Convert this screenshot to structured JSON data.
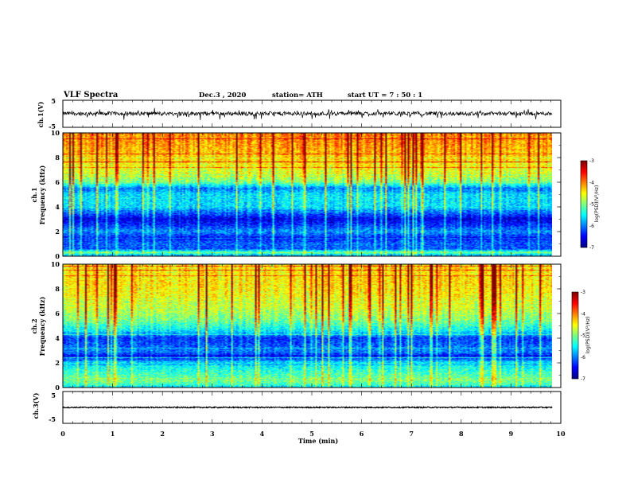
{
  "header": {
    "title": "VLF Spectra",
    "date": "Dec.3 , 2020",
    "station": "station= ATH",
    "start": "start UT = 7 : 50 : 1"
  },
  "chart_data": [
    {
      "type": "line",
      "panel": "ch1-waveform",
      "ylabel": "ch.1(V)",
      "ylim": [
        -5,
        5
      ],
      "yticks": [
        "5",
        "-5"
      ],
      "xlim": [
        0,
        10
      ],
      "data_extent_min": 9.83,
      "mean": 0.1,
      "amplitude": 1.2
    },
    {
      "type": "heatmap",
      "panel": "ch1-spectrogram",
      "ylabel": "ch.1 Frequency (kHz)",
      "ylabel_lines": [
        "ch.1",
        "Frequency (kHz)"
      ],
      "ylim": [
        0,
        10
      ],
      "yticks": [
        "0",
        "2",
        "4",
        "6",
        "8",
        "10"
      ],
      "xlim": [
        0,
        10
      ],
      "data_extent_min": 9.83,
      "profile_khz": [
        0,
        0.3,
        0.6,
        1.0,
        1.5,
        2.0,
        2.5,
        3.0,
        3.5,
        4.0,
        5.0,
        5.5,
        6.0,
        7.0,
        8.0,
        9.0,
        10.0
      ],
      "profile_log_psd": [
        -6.1,
        -5.0,
        -6.2,
        -6.1,
        -6.4,
        -5.9,
        -6.3,
        -6.6,
        -6.1,
        -5.6,
        -5.6,
        -6.0,
        -5.0,
        -4.6,
        -4.3,
        -4.1,
        -4.0
      ],
      "colorbar": {
        "label": "log(PSD)(V²/Hz)",
        "ticks": [
          "-3",
          "-4",
          "-5",
          "-6",
          "-7"
        ],
        "range": [
          -7,
          -3
        ]
      }
    },
    {
      "type": "heatmap",
      "panel": "ch2-spectrogram",
      "ylabel": "ch.2 Frequency (kHz)",
      "ylabel_lines": [
        "ch.2",
        "Frequency (kHz)"
      ],
      "ylim": [
        0,
        10
      ],
      "yticks": [
        "0",
        "2",
        "4",
        "6",
        "8",
        "10"
      ],
      "xlim": [
        0,
        10
      ],
      "data_extent_min": 9.83,
      "profile_khz": [
        0,
        0.3,
        0.6,
        1.0,
        1.5,
        2.0,
        2.5,
        3.0,
        4.0,
        4.5,
        5.5,
        6.5,
        7.5,
        8.5,
        10.0
      ],
      "profile_log_psd": [
        -5.5,
        -5.2,
        -5.0,
        -5.2,
        -5.4,
        -5.6,
        -6.4,
        -6.0,
        -6.3,
        -5.6,
        -5.0,
        -4.7,
        -4.5,
        -4.4,
        -4.4
      ],
      "colorbar": {
        "label": "log(PSD)(V²/Hz)",
        "ticks": [
          "-3",
          "-4",
          "-5",
          "-6",
          "-7"
        ],
        "range": [
          -7,
          -3
        ]
      }
    },
    {
      "type": "line",
      "panel": "ch3-waveform",
      "ylabel": "ch.3(V)",
      "ylim": [
        -5,
        5
      ],
      "yticks": [
        "5",
        "-5"
      ],
      "xlim": [
        0,
        10
      ],
      "data_extent_min": 9.83,
      "mean": 0.0,
      "amplitude": 0.35
    }
  ],
  "xaxis": {
    "label": "Time (min)",
    "ticks": [
      "0",
      "1",
      "2",
      "3",
      "4",
      "5",
      "6",
      "7",
      "8",
      "9",
      "10"
    ]
  },
  "colors": {
    "axis": "#000000",
    "trace": "#000000"
  }
}
